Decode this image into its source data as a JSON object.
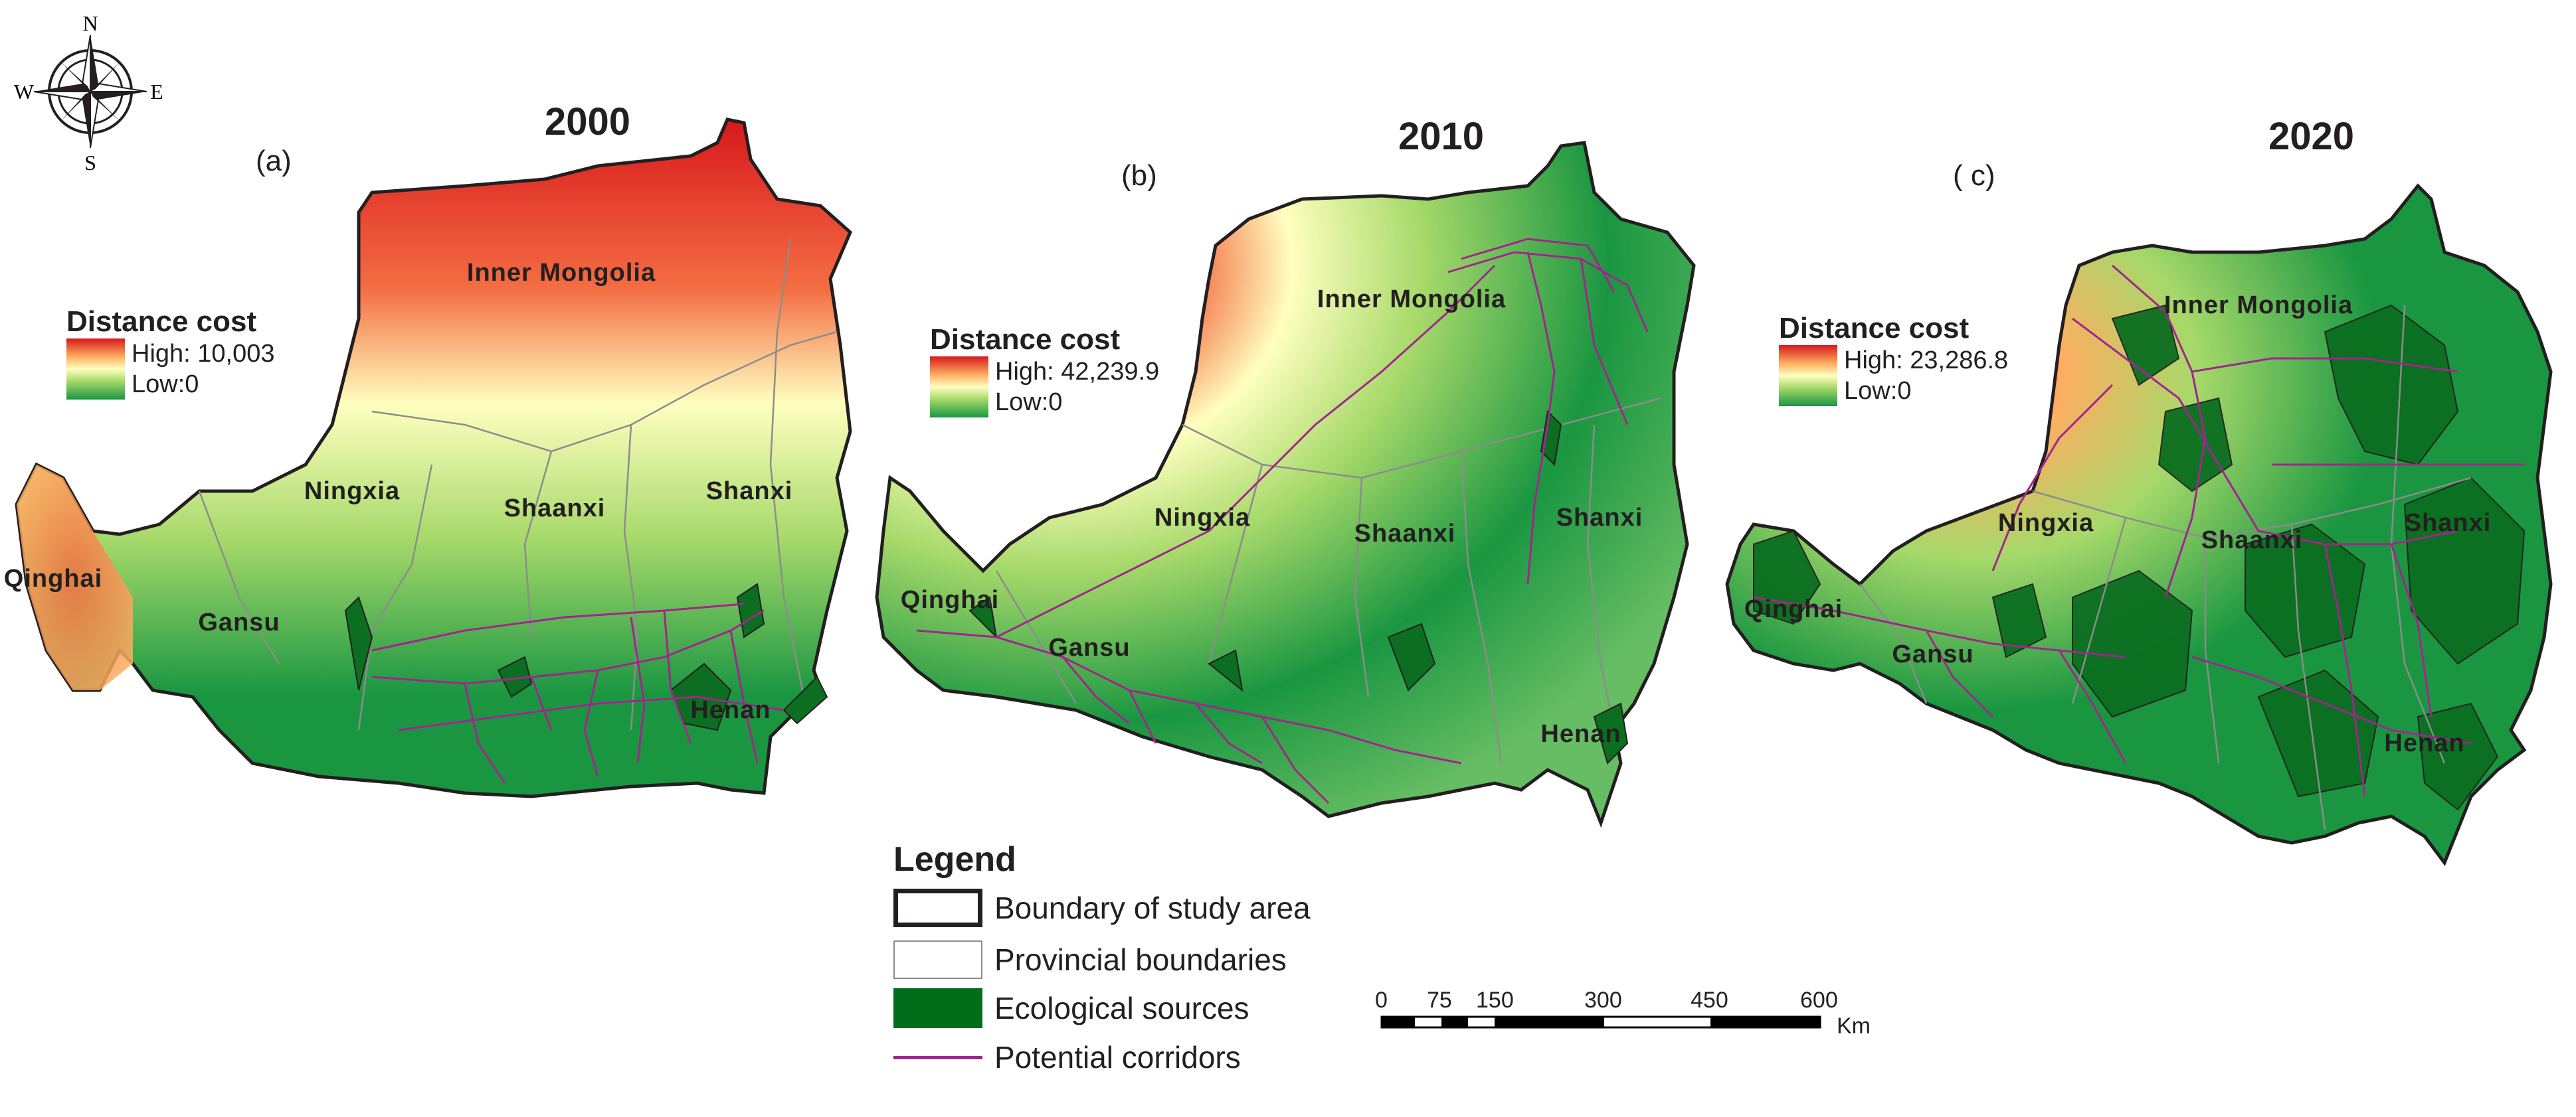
{
  "compass": {
    "n": "N",
    "s": "S",
    "e": "E",
    "w": "W"
  },
  "colors": {
    "high": "#d7191c",
    "mid": "#ffffbf",
    "low": "#1a9641",
    "source": "#006d1b",
    "corridor": "#a3248e",
    "boundary": "#231f20",
    "province": "#8c8c8c"
  },
  "panels": [
    {
      "label": "(a)",
      "year": "2000",
      "legend_title": "Distance cost",
      "high": "High: 10,003",
      "low": "Low:0",
      "provinces": {
        "inner_mongolia": "Inner Mongolia",
        "ningxia": "Ningxia",
        "shaanxi": "Shaanxi",
        "shanxi": "Shanxi",
        "qinghai": "Qinghai",
        "gansu": "Gansu",
        "henan": "Henan"
      }
    },
    {
      "label": "(b)",
      "year": "2010",
      "legend_title": "Distance cost",
      "high": "High: 42,239.9",
      "low": "Low:0",
      "provinces": {
        "inner_mongolia": "Inner Mongolia",
        "ningxia": "Ningxia",
        "shaanxi": "Shaanxi",
        "shanxi": "Shanxi",
        "qinghai": "Qinghai",
        "gansu": "Gansu",
        "henan": "Henan"
      }
    },
    {
      "label": "( c)",
      "year": "2020",
      "legend_title": "Distance cost",
      "high": "High: 23,286.8",
      "low": "Low:0",
      "provinces": {
        "inner_mongolia": "Inner Mongolia",
        "ningxia": "Ningxia",
        "shaanxi": "Shaanxi",
        "shanxi": "Shanxi",
        "qinghai": "Qinghai",
        "gansu": "Gansu",
        "henan": "Henan"
      }
    }
  ],
  "legend": {
    "title": "Legend",
    "items": [
      {
        "label": "Boundary of study area"
      },
      {
        "label": "Provincial boundaries"
      },
      {
        "label": "Ecological sources"
      },
      {
        "label": "Potential corridors"
      }
    ]
  },
  "scalebar": {
    "ticks": [
      "0",
      "75",
      "150",
      "300",
      "450",
      "600"
    ],
    "unit": "Km"
  }
}
